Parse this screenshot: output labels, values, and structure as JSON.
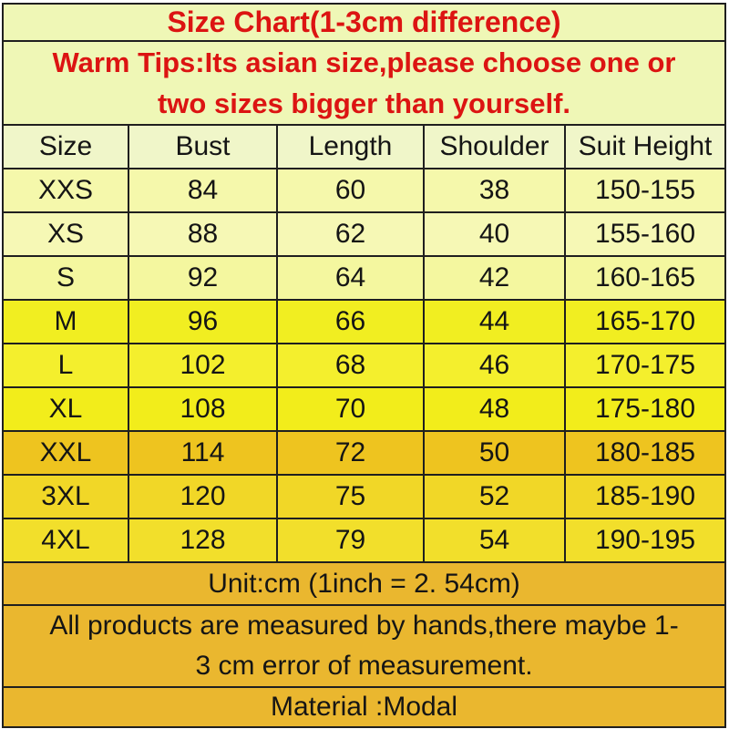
{
  "page": {
    "title": "Size Chart(1-3cm difference)",
    "warm_tips_line1": "Warm Tips:Its asian size,please choose one or",
    "warm_tips_line2": "two sizes bigger than yourself."
  },
  "table": {
    "headers": [
      "Size",
      "Bust",
      "Length",
      "Shoulder",
      "Suit Height"
    ],
    "rows": [
      {
        "size": "XXS",
        "bust": "84",
        "length": "60",
        "shoulder": "38",
        "suit_height": "150-155",
        "bg": "#f5f8ab"
      },
      {
        "size": "XS",
        "bust": "88",
        "length": "62",
        "shoulder": "40",
        "suit_height": "155-160",
        "bg": "#f6f8b5"
      },
      {
        "size": "S",
        "bust": "92",
        "length": "64",
        "shoulder": "42",
        "suit_height": "160-165",
        "bg": "#f4f79f"
      },
      {
        "size": "M",
        "bust": "96",
        "length": "66",
        "shoulder": "44",
        "suit_height": "165-170",
        "bg": "#f1ee21"
      },
      {
        "size": "L",
        "bust": "102",
        "length": "68",
        "shoulder": "46",
        "suit_height": "170-175",
        "bg": "#f4ef2d"
      },
      {
        "size": "XL",
        "bust": "108",
        "length": "70",
        "shoulder": "48",
        "suit_height": "175-180",
        "bg": "#f2ed1b"
      },
      {
        "size": "XXL",
        "bust": "114",
        "length": "72",
        "shoulder": "50",
        "suit_height": "180-185",
        "bg": "#eec41f"
      },
      {
        "size": "3XL",
        "bust": "120",
        "length": "75",
        "shoulder": "52",
        "suit_height": "185-190",
        "bg": "#f1d727"
      },
      {
        "size": "4XL",
        "bust": "128",
        "length": "79",
        "shoulder": "54",
        "suit_height": "190-195",
        "bg": "#f2df2b"
      }
    ]
  },
  "footer": {
    "unit": "Unit:cm (1inch = 2. 54cm)",
    "note_line1": "All products are measured by hands,there maybe 1-",
    "note_line2": "3 cm error of measurement.",
    "material": "Material :Modal"
  },
  "colors": {
    "accent_red": "#dc1412",
    "pale_section_bg": "#eff7b6",
    "table_header_bg": "#f0f6c9",
    "footer_gold": "#eab72f",
    "border": "#1f1f1f",
    "text": "#151515"
  },
  "chart_data": {
    "type": "table",
    "title": "Size Chart(1-3cm difference)",
    "columns": [
      "Size",
      "Bust",
      "Length",
      "Shoulder",
      "Suit Height"
    ],
    "rows": [
      [
        "XXS",
        84,
        60,
        38,
        "150-155"
      ],
      [
        "XS",
        88,
        62,
        40,
        "155-160"
      ],
      [
        "S",
        92,
        64,
        42,
        "160-165"
      ],
      [
        "M",
        96,
        66,
        44,
        "165-170"
      ],
      [
        "L",
        102,
        68,
        46,
        "170-175"
      ],
      [
        "XL",
        108,
        70,
        48,
        "175-180"
      ],
      [
        "XXL",
        114,
        72,
        50,
        "180-185"
      ],
      [
        "3XL",
        120,
        75,
        52,
        "185-190"
      ],
      [
        "4XL",
        128,
        79,
        54,
        "190-195"
      ]
    ],
    "unit": "cm",
    "notes": [
      "Warm Tips:Its asian size,please choose one or two sizes bigger than yourself.",
      "Unit:cm (1inch = 2. 54cm)",
      "All products are measured by hands,there maybe 1-3 cm error of measurement.",
      "Material :Modal"
    ]
  }
}
